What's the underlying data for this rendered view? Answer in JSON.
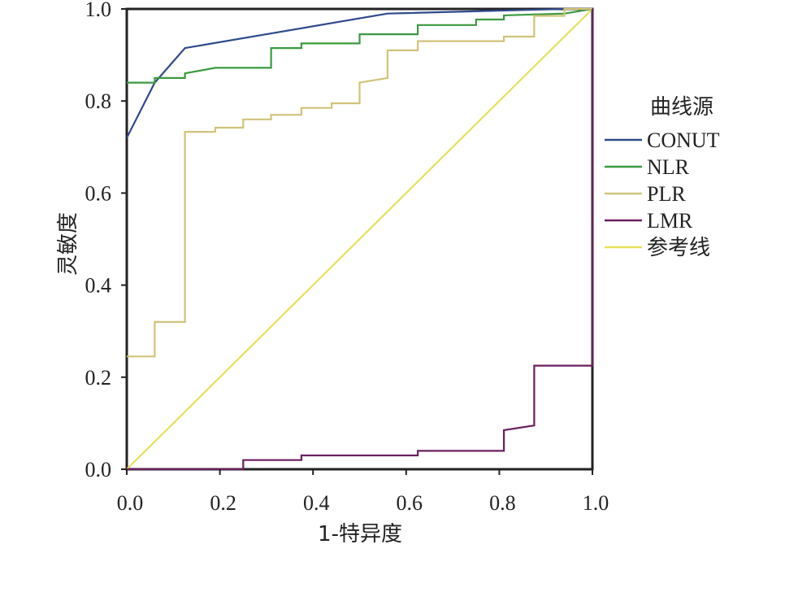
{
  "chart_data": {
    "type": "line",
    "title": "",
    "xlabel": "1-特异度",
    "ylabel": "灵敏度",
    "xlim": [
      0,
      1
    ],
    "ylim": [
      0,
      1
    ],
    "x_ticks": [
      "0.0",
      "0.2",
      "0.4",
      "0.6",
      "0.8",
      "1.0"
    ],
    "y_ticks": [
      "0.0",
      "0.2",
      "0.4",
      "0.6",
      "0.8",
      "1.0"
    ],
    "grid": false,
    "legend_title": "曲线源",
    "legend_position": "right",
    "series": [
      {
        "name": "CONUT",
        "color": "#2e4a8c",
        "points": [
          [
            0,
            0.72
          ],
          [
            0.06,
            0.84
          ],
          [
            0.125,
            0.915
          ],
          [
            0.3,
            0.945
          ],
          [
            0.56,
            0.99
          ],
          [
            0.94,
            1.0
          ],
          [
            1.0,
            1.0
          ]
        ]
      },
      {
        "name": "NLR",
        "color": "#3a9a3f",
        "points": [
          [
            0,
            0.84
          ],
          [
            0.06,
            0.84
          ],
          [
            0.06,
            0.85
          ],
          [
            0.125,
            0.85
          ],
          [
            0.125,
            0.86
          ],
          [
            0.19,
            0.872
          ],
          [
            0.31,
            0.872
          ],
          [
            0.31,
            0.915
          ],
          [
            0.375,
            0.915
          ],
          [
            0.375,
            0.925
          ],
          [
            0.5,
            0.925
          ],
          [
            0.5,
            0.945
          ],
          [
            0.625,
            0.945
          ],
          [
            0.625,
            0.965
          ],
          [
            0.75,
            0.965
          ],
          [
            0.75,
            0.977
          ],
          [
            0.81,
            0.977
          ],
          [
            0.81,
            0.986
          ],
          [
            0.94,
            0.99
          ],
          [
            1.0,
            1.0
          ]
        ]
      },
      {
        "name": "PLR",
        "color": "#d1c37a",
        "points": [
          [
            0,
            0.245
          ],
          [
            0.06,
            0.245
          ],
          [
            0.06,
            0.32
          ],
          [
            0.125,
            0.32
          ],
          [
            0.125,
            0.733
          ],
          [
            0.19,
            0.733
          ],
          [
            0.19,
            0.742
          ],
          [
            0.25,
            0.742
          ],
          [
            0.25,
            0.76
          ],
          [
            0.31,
            0.76
          ],
          [
            0.31,
            0.77
          ],
          [
            0.375,
            0.77
          ],
          [
            0.375,
            0.785
          ],
          [
            0.44,
            0.785
          ],
          [
            0.44,
            0.795
          ],
          [
            0.5,
            0.795
          ],
          [
            0.5,
            0.84
          ],
          [
            0.56,
            0.85
          ],
          [
            0.56,
            0.91
          ],
          [
            0.625,
            0.91
          ],
          [
            0.625,
            0.93
          ],
          [
            0.81,
            0.93
          ],
          [
            0.81,
            0.94
          ],
          [
            0.875,
            0.94
          ],
          [
            0.875,
            0.985
          ],
          [
            0.94,
            0.985
          ],
          [
            0.94,
            1.0
          ],
          [
            1.0,
            1.0
          ]
        ]
      },
      {
        "name": "LMR",
        "color": "#6a1f5e",
        "points": [
          [
            0,
            0
          ],
          [
            0.25,
            0
          ],
          [
            0.25,
            0.02
          ],
          [
            0.375,
            0.02
          ],
          [
            0.375,
            0.03
          ],
          [
            0.625,
            0.03
          ],
          [
            0.625,
            0.04
          ],
          [
            0.81,
            0.04
          ],
          [
            0.81,
            0.085
          ],
          [
            0.875,
            0.095
          ],
          [
            0.875,
            0.225
          ],
          [
            1.0,
            0.225
          ],
          [
            1.0,
            1.0
          ]
        ]
      },
      {
        "name": "参考线",
        "color": "#e8e05a",
        "points": [
          [
            0,
            0
          ],
          [
            1,
            1
          ]
        ]
      }
    ]
  }
}
